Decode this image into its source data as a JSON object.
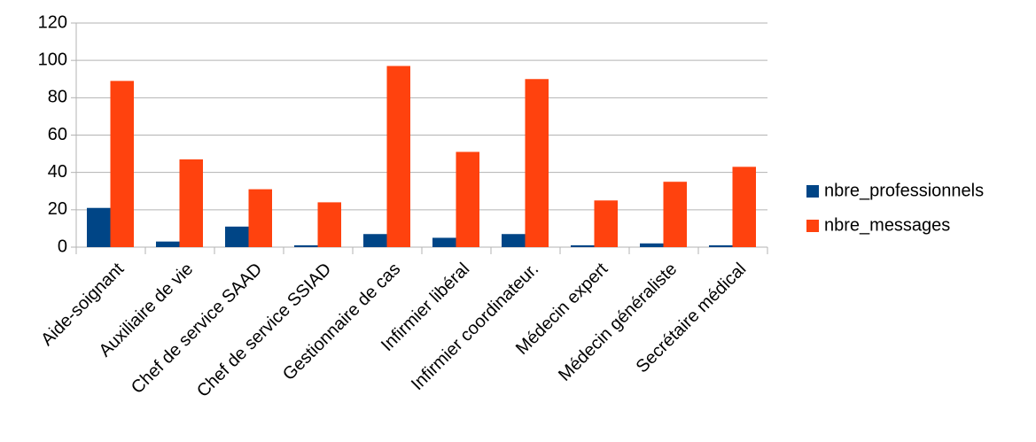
{
  "chart_data": {
    "type": "bar",
    "categories": [
      "Aide-soignant",
      "Auxiliaire de vie",
      "Chef de service SAAD",
      "Chef de service SSIAD",
      "Gestionnaire de cas",
      "Infirmier libéral",
      "Infirmier coordinateur.",
      "Médecin expert",
      "Médecin généraliste",
      "Secrétaire médical"
    ],
    "series": [
      {
        "name": "nbre_professionnels",
        "color": "#004586",
        "values": [
          21,
          3,
          11,
          1,
          7,
          5,
          7,
          1,
          2,
          1
        ]
      },
      {
        "name": "nbre_messages",
        "color": "#ff420e",
        "values": [
          89,
          47,
          31,
          24,
          97,
          51,
          90,
          25,
          35,
          43
        ]
      }
    ],
    "ylim": [
      0,
      120
    ],
    "yticks": [
      0,
      20,
      40,
      60,
      80,
      100,
      120
    ],
    "grid": true,
    "legend": "right"
  }
}
